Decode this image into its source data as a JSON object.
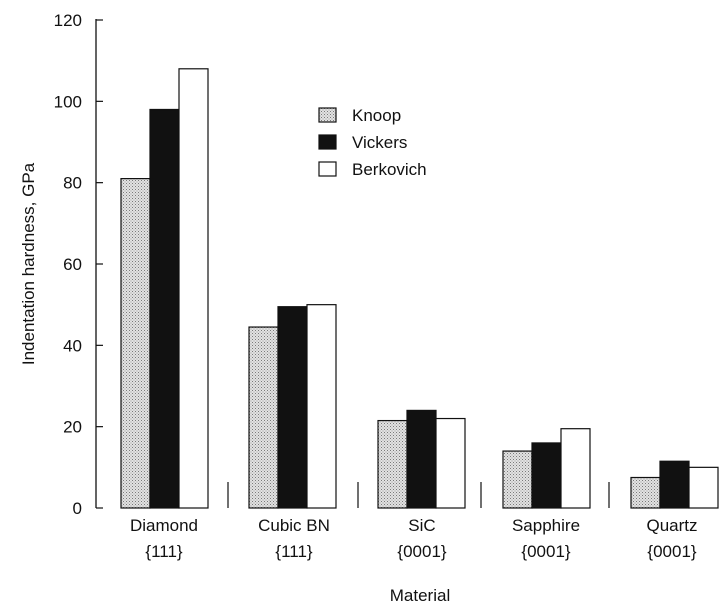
{
  "chart_data": {
    "type": "bar",
    "title": "",
    "xlabel": "Material",
    "ylabel": "Indentation hardness, GPa",
    "ylim": [
      0,
      120
    ],
    "yticks": [
      "0",
      "20",
      "40",
      "60",
      "80",
      "100",
      "120"
    ],
    "grid": false,
    "legend_position": "top-right",
    "categories": [
      {
        "name": "Diamond",
        "orientation": "{111}"
      },
      {
        "name": "Cubic BN",
        "orientation": "{111}"
      },
      {
        "name": "SiC",
        "orientation": "{0001}"
      },
      {
        "name": "Sapphire",
        "orientation": "{0001}"
      },
      {
        "name": "Quartz",
        "orientation": "{0001}"
      }
    ],
    "series": [
      {
        "name": "Knoop",
        "fill": "#cfcfcf",
        "values": [
          81,
          44.5,
          21.5,
          14,
          7.5
        ]
      },
      {
        "name": "Vickers",
        "fill": "#111111",
        "values": [
          98,
          49.5,
          24,
          16,
          11.5
        ]
      },
      {
        "name": "Berkovich",
        "fill": "#ffffff",
        "values": [
          108,
          50,
          22,
          19.5,
          10
        ]
      }
    ]
  }
}
